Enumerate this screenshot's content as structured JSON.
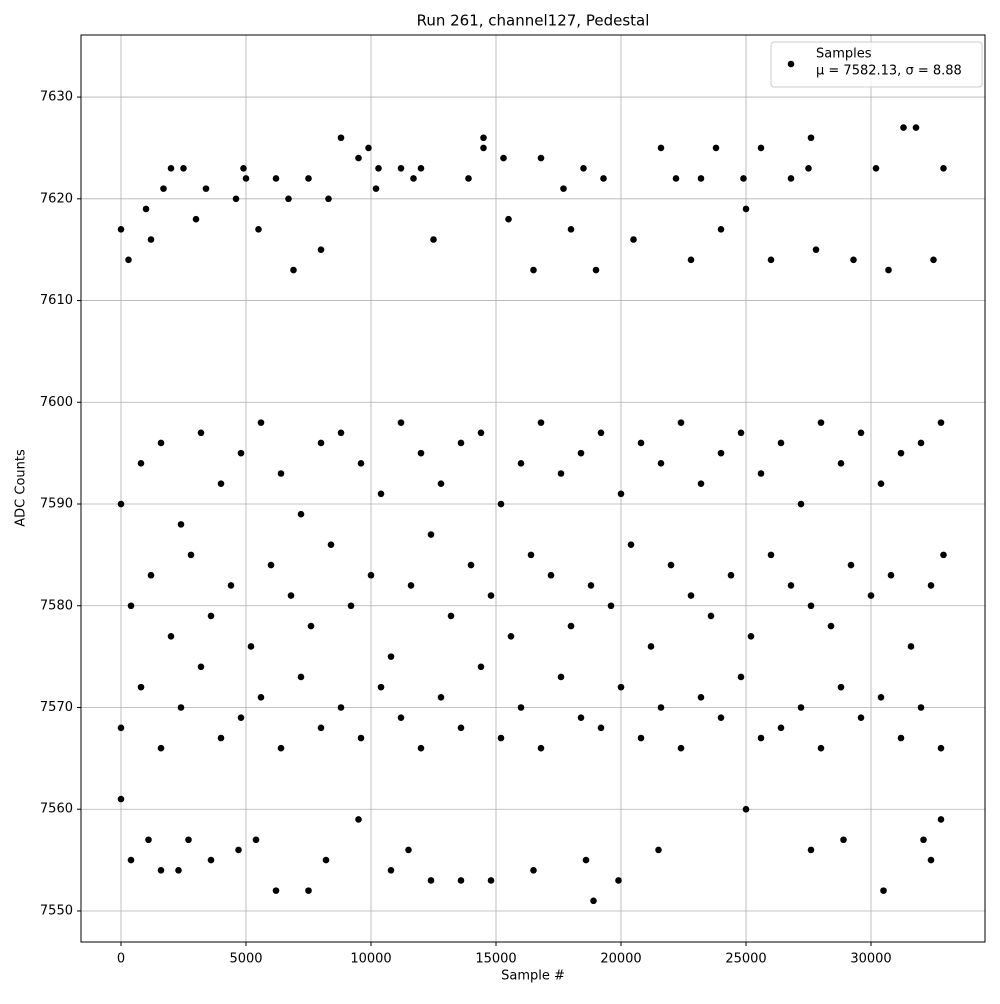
{
  "chart_data": {
    "type": "scatter",
    "title": "Run 261, channel127, Pedestal",
    "x_label": "Sample #",
    "y_label": "ADC Counts",
    "xlim": [
      -1600,
      34560
    ],
    "ylim": [
      7546.95,
      7636.1
    ],
    "xticks": [
      0,
      5000,
      10000,
      15000,
      20000,
      25000,
      30000
    ],
    "yticks": [
      7550,
      7560,
      7570,
      7580,
      7590,
      7600,
      7610,
      7620,
      7630
    ],
    "grid": true,
    "legend_position": "upper right",
    "legend_note": "μ = 7582.13, σ = 8.88",
    "series": [
      {
        "name": "Samples",
        "color": "#000000",
        "x": [
          0,
          800,
          1600,
          2400,
          3200,
          4000,
          4800,
          5600,
          6400,
          7200,
          8000,
          8800,
          9600,
          10400,
          11200,
          12000,
          12800,
          13600,
          14400,
          15200,
          16000,
          16800,
          17600,
          18400,
          19200,
          20000,
          20800,
          21600,
          22400,
          23200,
          24000,
          24800,
          25600,
          26400,
          27200,
          28000,
          28800,
          29600,
          30400,
          31200,
          32000,
          32800,
          0,
          800,
          1600,
          2400,
          3200,
          4000,
          4800,
          5600,
          6400,
          7200,
          8000,
          8800,
          9600,
          10400,
          11200,
          12000,
          12800,
          13600,
          14400,
          15200,
          16000,
          16800,
          17600,
          18400,
          19200,
          20000,
          20800,
          21600,
          22400,
          23200,
          24000,
          24800,
          25600,
          26400,
          27200,
          28000,
          28800,
          29600,
          30400,
          31200,
          32000,
          32800,
          400,
          1200,
          2000,
          2800,
          3600,
          4400,
          5200,
          6000,
          6800,
          7600,
          8400,
          9200,
          10000,
          10800,
          11600,
          12400,
          13200,
          14000,
          14800,
          15600,
          16400,
          17200,
          18000,
          18800,
          19600,
          20400,
          21200,
          22000,
          22800,
          23600,
          24400,
          25200,
          26000,
          26800,
          27600,
          28400,
          29200,
          30000,
          30800,
          31600,
          32400,
          32900,
          0,
          300,
          1000,
          1700,
          2000,
          2500,
          3400,
          4600,
          4900,
          5000,
          6200,
          6700,
          7500,
          8300,
          8800,
          9500,
          9900,
          10200,
          10300,
          11200,
          11700,
          12000,
          13900,
          14500,
          14500,
          15300,
          16800,
          17700,
          18500,
          19300,
          21600,
          22200,
          23200,
          23800,
          24900,
          25600,
          25000,
          26800,
          27600,
          27500,
          30200,
          31300,
          31800,
          32900,
          1200,
          3000,
          5500,
          8000,
          12500,
          15500,
          18000,
          20500,
          22800,
          24000,
          27800,
          29300,
          30700,
          32500,
          6900,
          16500,
          19000,
          26000,
          0,
          400,
          1600,
          2300,
          3600,
          4700,
          6200,
          7500,
          8200,
          10800,
          12400,
          13600,
          14800,
          16500,
          18600,
          18900,
          19900,
          21500,
          27600,
          28900,
          30500,
          32100,
          32400,
          32800,
          9500,
          11500,
          25000,
          5400,
          1100,
          2700
        ],
        "values": [
          7590,
          7594,
          7596,
          7588,
          7597,
          7592,
          7595,
          7598,
          7593,
          7589,
          7596,
          7597,
          7594,
          7591,
          7598,
          7595,
          7592,
          7596,
          7597,
          7590,
          7594,
          7598,
          7593,
          7595,
          7597,
          7591,
          7596,
          7594,
          7598,
          7592,
          7595,
          7597,
          7593,
          7596,
          7590,
          7598,
          7594,
          7597,
          7592,
          7595,
          7596,
          7598,
          7568,
          7572,
          7566,
          7570,
          7574,
          7567,
          7569,
          7571,
          7566,
          7573,
          7568,
          7570,
          7567,
          7572,
          7569,
          7566,
          7571,
          7568,
          7574,
          7567,
          7570,
          7566,
          7573,
          7569,
          7568,
          7572,
          7567,
          7570,
          7566,
          7571,
          7569,
          7573,
          7567,
          7568,
          7570,
          7566,
          7572,
          7569,
          7571,
          7567,
          7570,
          7566,
          7580,
          7583,
          7577,
          7585,
          7579,
          7582,
          7576,
          7584,
          7581,
          7578,
          7586,
          7580,
          7583,
          7575,
          7582,
          7587,
          7579,
          7584,
          7581,
          7577,
          7585,
          7583,
          7578,
          7582,
          7580,
          7586,
          7576,
          7584,
          7581,
          7579,
          7583,
          7577,
          7585,
          7582,
          7580,
          7578,
          7584,
          7581,
          7583,
          7576,
          7582,
          7585,
          7617,
          7614,
          7619,
          7621,
          7623,
          7623,
          7621,
          7620,
          7623,
          7622,
          7622,
          7620,
          7622,
          7620,
          7626,
          7624,
          7625,
          7621,
          7623,
          7623,
          7622,
          7623,
          7622,
          7626,
          7625,
          7624,
          7624,
          7621,
          7623,
          7622,
          7625,
          7622,
          7622,
          7625,
          7622,
          7625,
          7619,
          7622,
          7626,
          7623,
          7623,
          7627,
          7627,
          7623,
          7616,
          7618,
          7617,
          7615,
          7616,
          7618,
          7617,
          7616,
          7614,
          7617,
          7615,
          7614,
          7613,
          7614,
          7613,
          7613,
          7613,
          7614,
          7561,
          7555,
          7554,
          7554,
          7555,
          7556,
          7552,
          7552,
          7555,
          7554,
          7553,
          7553,
          7553,
          7554,
          7555,
          7551,
          7553,
          7556,
          7556,
          7557,
          7552,
          7557,
          7555,
          7559,
          7559,
          7556,
          7560,
          7557,
          7557,
          7557
        ]
      }
    ]
  }
}
